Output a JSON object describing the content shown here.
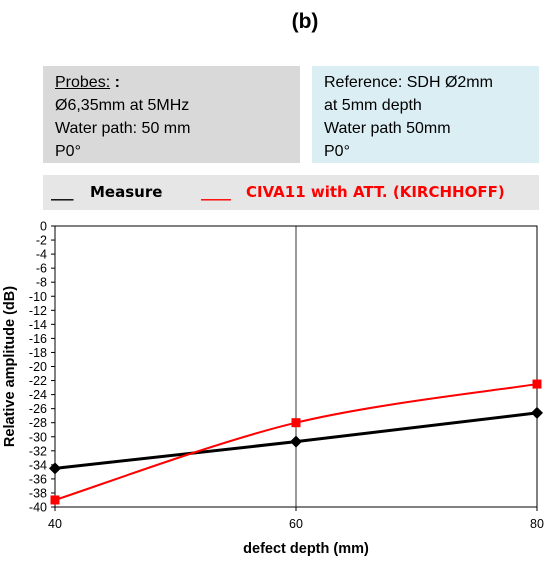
{
  "panel_label": "(b)",
  "probes_box": {
    "heading": "Probes:",
    "heading_suffix": " :",
    "lines": [
      "Ø6,35mm at 5MHz",
      "Water path: 50 mm",
      "P0°"
    ]
  },
  "reference_box": {
    "lines": [
      "Reference:  SDH Ø2mm",
      "at 5mm depth",
      "Water path 50mm",
      "P0°"
    ]
  },
  "legend": {
    "measure_dash": "___",
    "measure_label": "Measure",
    "civa_dash": "____",
    "civa_label": "CIVA11 with ATT. (KIRCHHOFF)"
  },
  "colors": {
    "measure": "#000000",
    "civa": "#ff0000",
    "probes_bg": "#d9d9d9",
    "reference_bg": "#daeef3"
  },
  "chart_data": {
    "type": "line",
    "xlabel": "defect depth (mm)",
    "ylabel": "Relative amplitude (dB)",
    "xlim": [
      40,
      80
    ],
    "ylim": [
      -40,
      0
    ],
    "x_ticks": [
      40,
      60,
      80
    ],
    "y_ticks": [
      0,
      -2,
      -4,
      -6,
      -8,
      -10,
      -12,
      -14,
      -16,
      -18,
      -20,
      -22,
      -24,
      -26,
      -28,
      -30,
      -32,
      -34,
      -36,
      -38,
      -40
    ],
    "grid": "vertical lines at x ticks",
    "series": [
      {
        "name": "Measure",
        "color": "#000000",
        "marker": "diamond",
        "x": [
          40,
          60,
          80
        ],
        "y": [
          -34.5,
          -30.7,
          -26.6
        ]
      },
      {
        "name": "CIVA11 with ATT. (KIRCHHOFF)",
        "color": "#ff0000",
        "marker": "square",
        "x": [
          40,
          60,
          80
        ],
        "y": [
          -39.0,
          -28.0,
          -22.5
        ]
      }
    ]
  }
}
